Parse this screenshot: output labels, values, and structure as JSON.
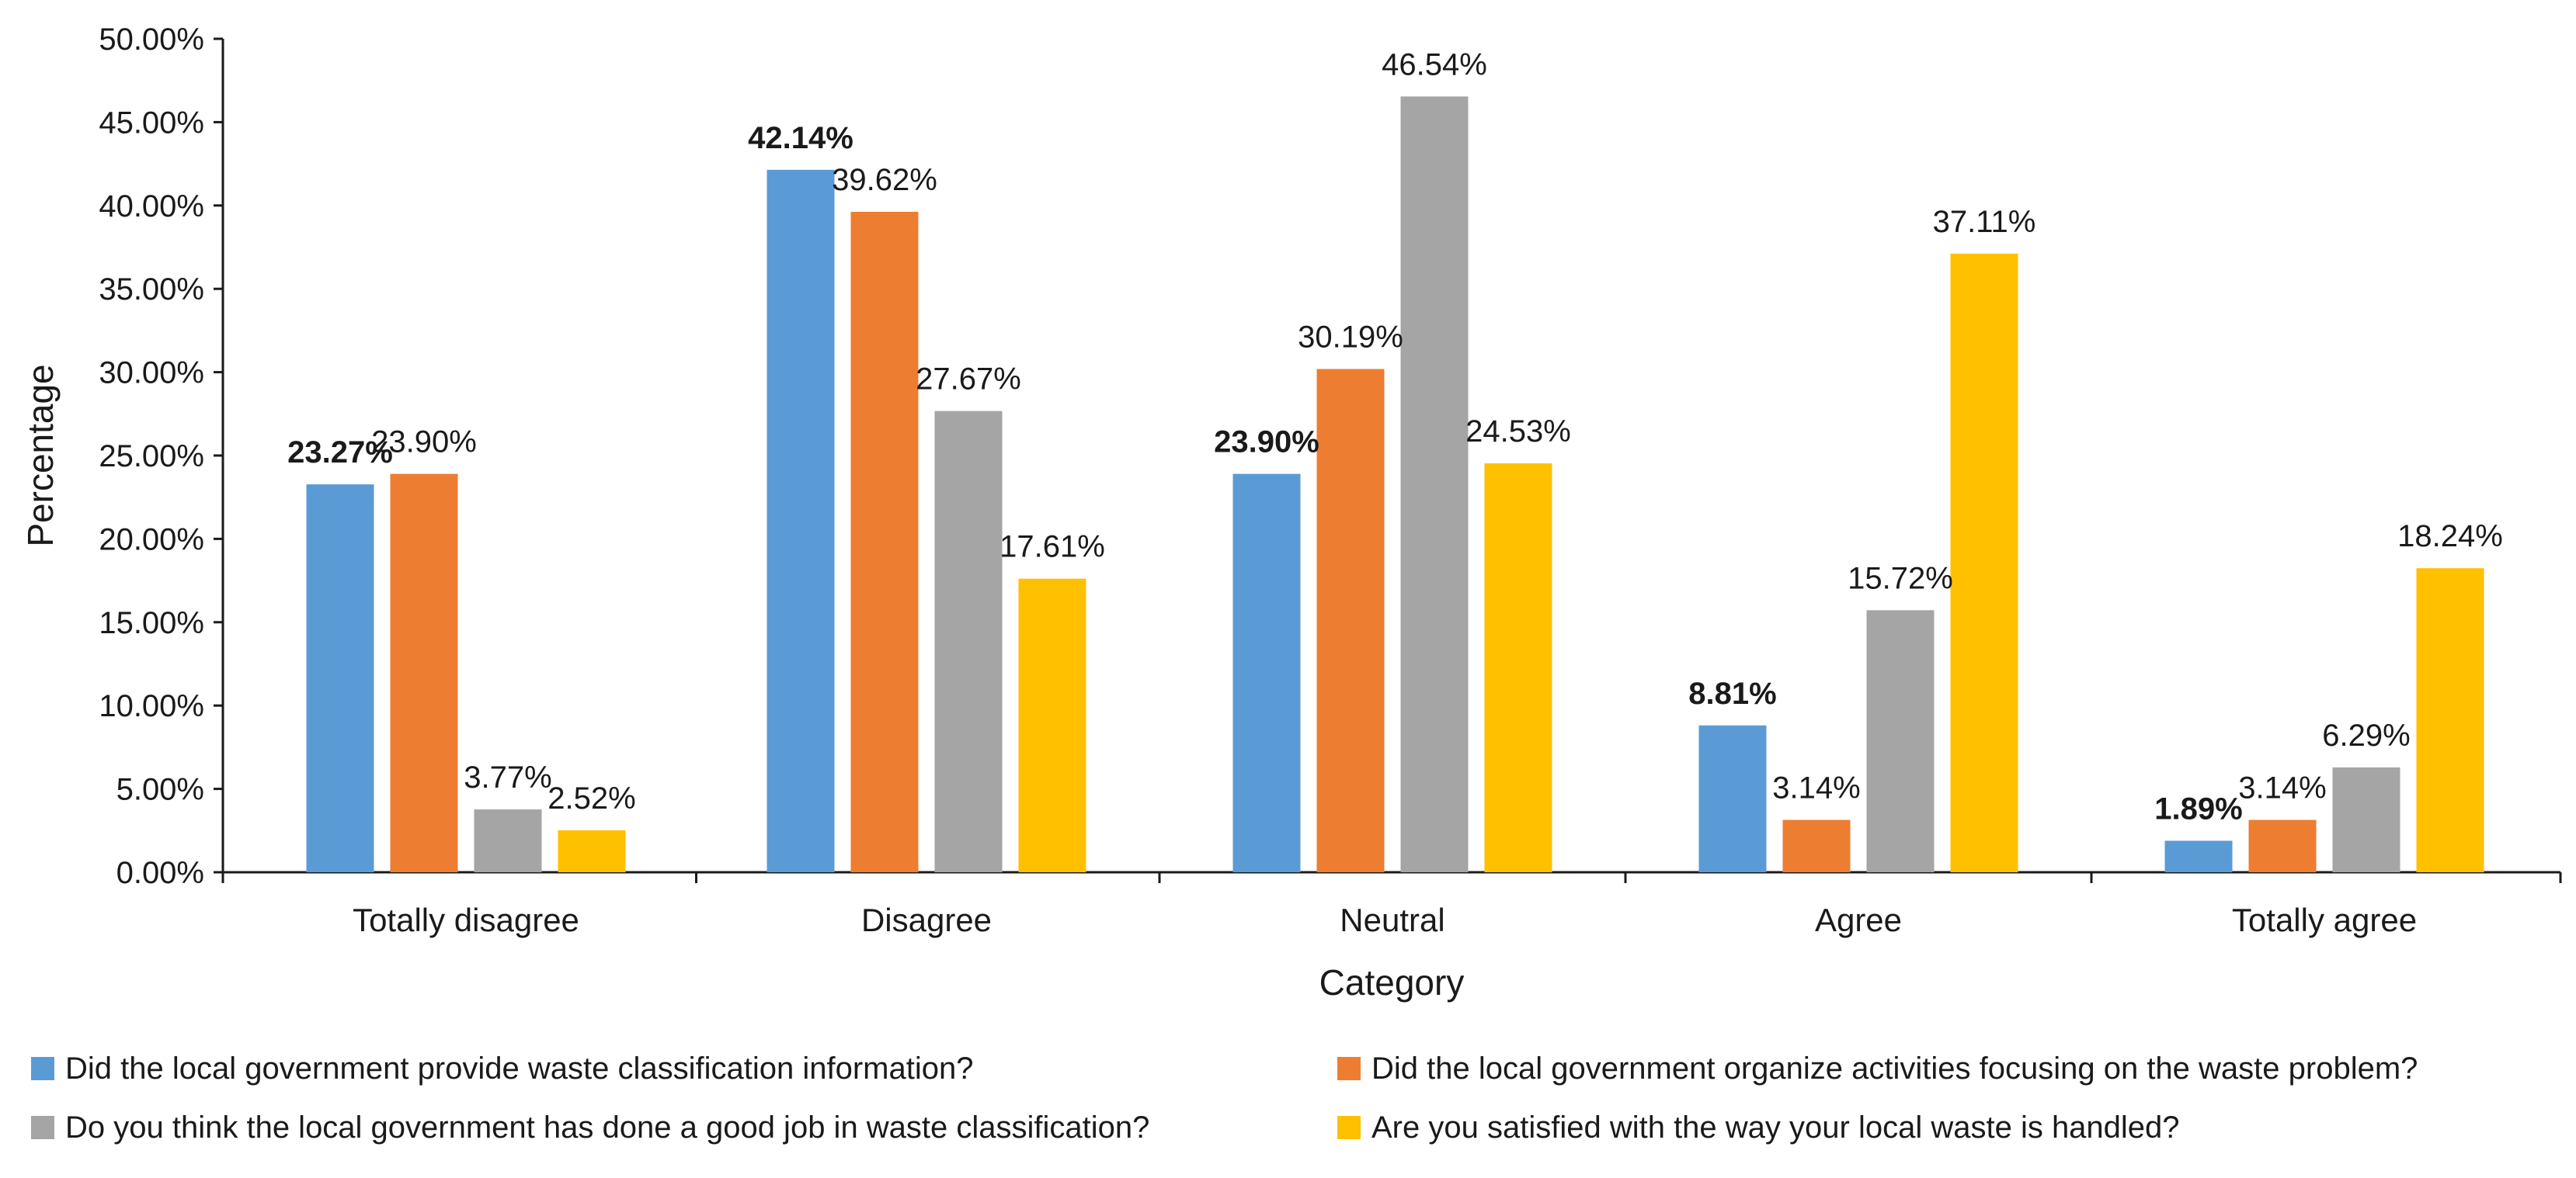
{
  "chart_data": {
    "type": "bar",
    "title": "",
    "xlabel": "Category",
    "ylabel": "Percentage",
    "ylim": [
      0,
      50
    ],
    "y_ticks": [
      "0.00%",
      "5.00%",
      "10.00%",
      "15.00%",
      "20.00%",
      "25.00%",
      "30.00%",
      "35.00%",
      "40.00%",
      "45.00%",
      "50.00%"
    ],
    "grid": false,
    "legend_position": "bottom",
    "categories": [
      "Totally disagree",
      "Disagree",
      "Neutral",
      "Agree",
      "Totally agree"
    ],
    "series": [
      {
        "name": "Did the local government provide waste classification information?",
        "color": "#5B9BD5",
        "values": [
          23.27,
          42.14,
          23.9,
          8.81,
          1.89
        ],
        "labels": [
          "23.27%",
          "42.14%",
          "23.90%",
          "8.81%",
          "1.89%"
        ]
      },
      {
        "name": "Did the local government organize activities focusing on the waste problem?",
        "color": "#ED7D31",
        "values": [
          23.9,
          39.62,
          30.19,
          3.14,
          3.14
        ],
        "labels": [
          "23.90%",
          "39.62%",
          "30.19%",
          "3.14%",
          "3.14%"
        ]
      },
      {
        "name": "Do you think the local government has done a good job in waste classification?",
        "color": "#A5A5A5",
        "values": [
          3.77,
          27.67,
          46.54,
          15.72,
          6.29
        ],
        "labels": [
          "3.77%",
          "27.67%",
          "46.54%",
          "15.72%",
          "6.29%"
        ]
      },
      {
        "name": "Are you satisfied with the way your local waste is handled?",
        "color": "#FFC000",
        "values": [
          2.52,
          17.61,
          24.53,
          37.11,
          18.24
        ],
        "labels": [
          "2.52%",
          "17.61%",
          "24.53%",
          "37.11%",
          "18.24%"
        ]
      }
    ]
  }
}
